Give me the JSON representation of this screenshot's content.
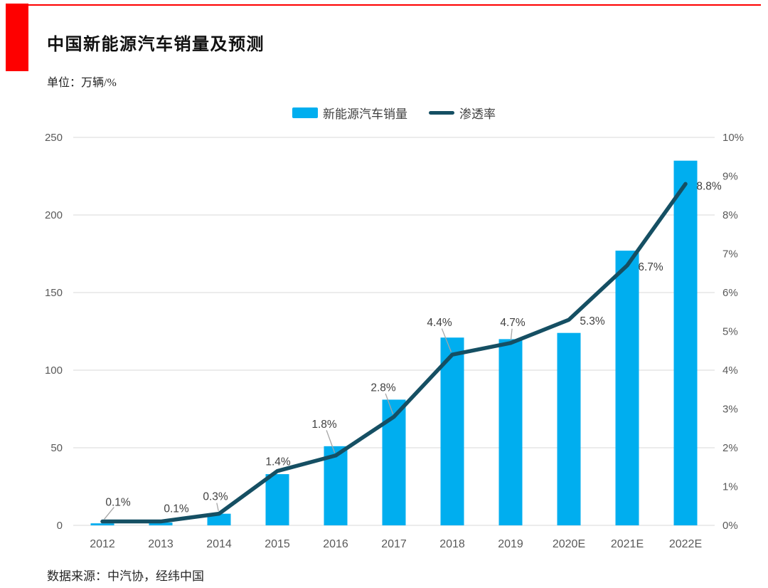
{
  "header": {
    "title": "中国新能源汽车销量及预测",
    "unit_label": "单位：万辆/%",
    "accent_color": "#FE0000"
  },
  "legend": {
    "bar_label": "新能源汽车销量",
    "line_label": "渗透率"
  },
  "footer": {
    "source": "数据来源：中汽协，经纬中国"
  },
  "colors": {
    "bar": "#00AEEF",
    "line": "#154F63",
    "grid": "#D9D9D9",
    "tick_text": "#595959",
    "data_label_text": "#404040",
    "leader_line": "#A6A6A6"
  },
  "chart_data": {
    "type": "bar",
    "subtype": "bar-line-combo-dual-axis",
    "title": "中国新能源汽车销量及预测",
    "unit": "万辆/%",
    "categories": [
      "2012",
      "2013",
      "2014",
      "2015",
      "2016",
      "2017",
      "2018",
      "2019",
      "2020E",
      "2021E",
      "2022E"
    ],
    "series": [
      {
        "name": "新能源汽车销量",
        "type": "bar",
        "axis": "left",
        "color": "#00AEEF",
        "values": [
          1.3,
          1.8,
          7.5,
          33,
          51,
          81,
          121,
          120,
          124,
          177,
          235
        ]
      },
      {
        "name": "渗透率",
        "type": "line",
        "axis": "right",
        "color": "#154F63",
        "values": [
          0.1,
          0.1,
          0.3,
          1.4,
          1.8,
          2.8,
          4.4,
          4.7,
          5.3,
          6.7,
          8.8
        ],
        "point_labels": [
          "0.1%",
          "0.1%",
          "0.3%",
          "1.4%",
          "1.8%",
          "2.8%",
          "4.4%",
          "4.7%",
          "5.3%",
          "6.7%",
          "8.8%"
        ],
        "label_offsets": [
          {
            "dx": 22,
            "dy": -27,
            "leader": true
          },
          {
            "dx": 22,
            "dy": -18,
            "leader": false
          },
          {
            "dx": -5,
            "dy": -24,
            "leader": true
          },
          {
            "dx": 1,
            "dy": -13,
            "leader": false
          },
          {
            "dx": -16,
            "dy": -44,
            "leader": true
          },
          {
            "dx": -15,
            "dy": -41,
            "leader": true
          },
          {
            "dx": -18,
            "dy": -45,
            "leader": true
          },
          {
            "dx": 3,
            "dy": -29,
            "leader": true
          },
          {
            "dx": 33,
            "dy": 2,
            "leader": false
          },
          {
            "dx": 33,
            "dy": 2,
            "leader": false
          },
          {
            "dx": 33,
            "dy": 3,
            "leader": false
          }
        ]
      }
    ],
    "left_axis": {
      "min": 0,
      "max": 250,
      "step": 50,
      "ticks": [
        "0",
        "50",
        "100",
        "150",
        "200",
        "250"
      ]
    },
    "right_axis": {
      "min": 0,
      "max": 10,
      "step": 1,
      "ticks": [
        "0%",
        "1%",
        "2%",
        "3%",
        "4%",
        "5%",
        "6%",
        "7%",
        "8%",
        "9%",
        "10%"
      ]
    },
    "grid": true,
    "legend_position": "top-center"
  }
}
